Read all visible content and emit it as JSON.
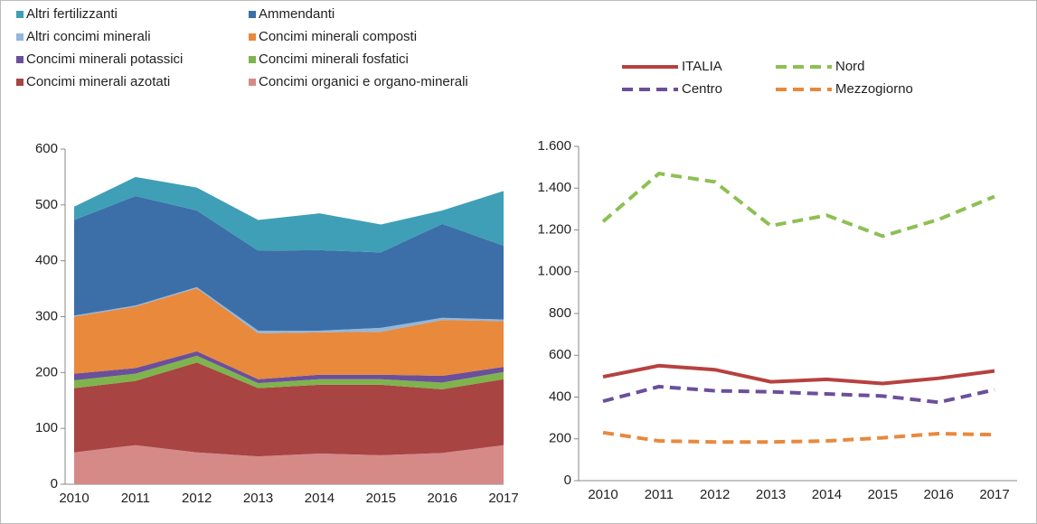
{
  "chart_data": [
    {
      "type": "stacked_area",
      "categories": [
        "2010",
        "2011",
        "2012",
        "2013",
        "2014",
        "2015",
        "2016",
        "2017"
      ],
      "ylim": [
        0,
        600
      ],
      "yticks": [
        0,
        100,
        200,
        300,
        400,
        500,
        600
      ],
      "series": [
        {
          "name": "Concimi organici e organo-minerali",
          "color": "#d58a88",
          "values": [
            57,
            70,
            57,
            50,
            55,
            52,
            56,
            70
          ]
        },
        {
          "name": "Concimi minerali azotati",
          "color": "#a84442",
          "values": [
            115,
            115,
            161,
            122,
            123,
            126,
            114,
            118
          ]
        },
        {
          "name": "Concimi minerali fosfatici",
          "color": "#7fb44c",
          "values": [
            14,
            13,
            12,
            9,
            10,
            10,
            12,
            13
          ]
        },
        {
          "name": "Concimi minerali potassici",
          "color": "#6b4f9b",
          "values": [
            12,
            10,
            8,
            7,
            8,
            8,
            12,
            9
          ]
        },
        {
          "name": "Concimi minerali composti",
          "color": "#e8893c",
          "values": [
            102,
            110,
            113,
            82,
            76,
            77,
            100,
            82
          ]
        },
        {
          "name": "Altri concimi minerali",
          "color": "#93b6dc",
          "values": [
            2,
            2,
            2,
            5,
            3,
            7,
            4,
            3
          ]
        },
        {
          "name": "Ammendanti",
          "color": "#3c6fa8",
          "values": [
            171,
            196,
            137,
            143,
            144,
            135,
            168,
            132
          ]
        },
        {
          "name": "Altri fertilizzanti",
          "color": "#3f9fb6",
          "values": [
            24,
            34,
            41,
            55,
            66,
            50,
            24,
            98
          ]
        }
      ]
    },
    {
      "type": "line",
      "categories": [
        "2010",
        "2011",
        "2012",
        "2013",
        "2014",
        "2015",
        "2016",
        "2017"
      ],
      "ylim": [
        0,
        1600
      ],
      "yticks": [
        0,
        200,
        400,
        600,
        800,
        {
          "value": 1000,
          "label": "1.000"
        },
        {
          "value": 1200,
          "label": "1.200"
        },
        {
          "value": 1400,
          "label": "1.400"
        },
        {
          "value": 1600,
          "label": "1.600"
        }
      ],
      "series": [
        {
          "name": "ITALIA",
          "color": "#b7413f",
          "dashed": false,
          "values": [
            497,
            550,
            531,
            473,
            485,
            465,
            490,
            525
          ]
        },
        {
          "name": "Nord",
          "color": "#8dc053",
          "dashed": true,
          "values": [
            1240,
            1470,
            1430,
            1220,
            1270,
            1170,
            1250,
            1360
          ]
        },
        {
          "name": "Centro",
          "color": "#6b4f9b",
          "dashed": true,
          "values": [
            380,
            450,
            430,
            425,
            415,
            405,
            375,
            435
          ]
        },
        {
          "name": "Mezzogiorno",
          "color": "#e8893c",
          "dashed": true,
          "values": [
            230,
            190,
            185,
            185,
            190,
            205,
            225,
            220
          ]
        }
      ]
    }
  ]
}
